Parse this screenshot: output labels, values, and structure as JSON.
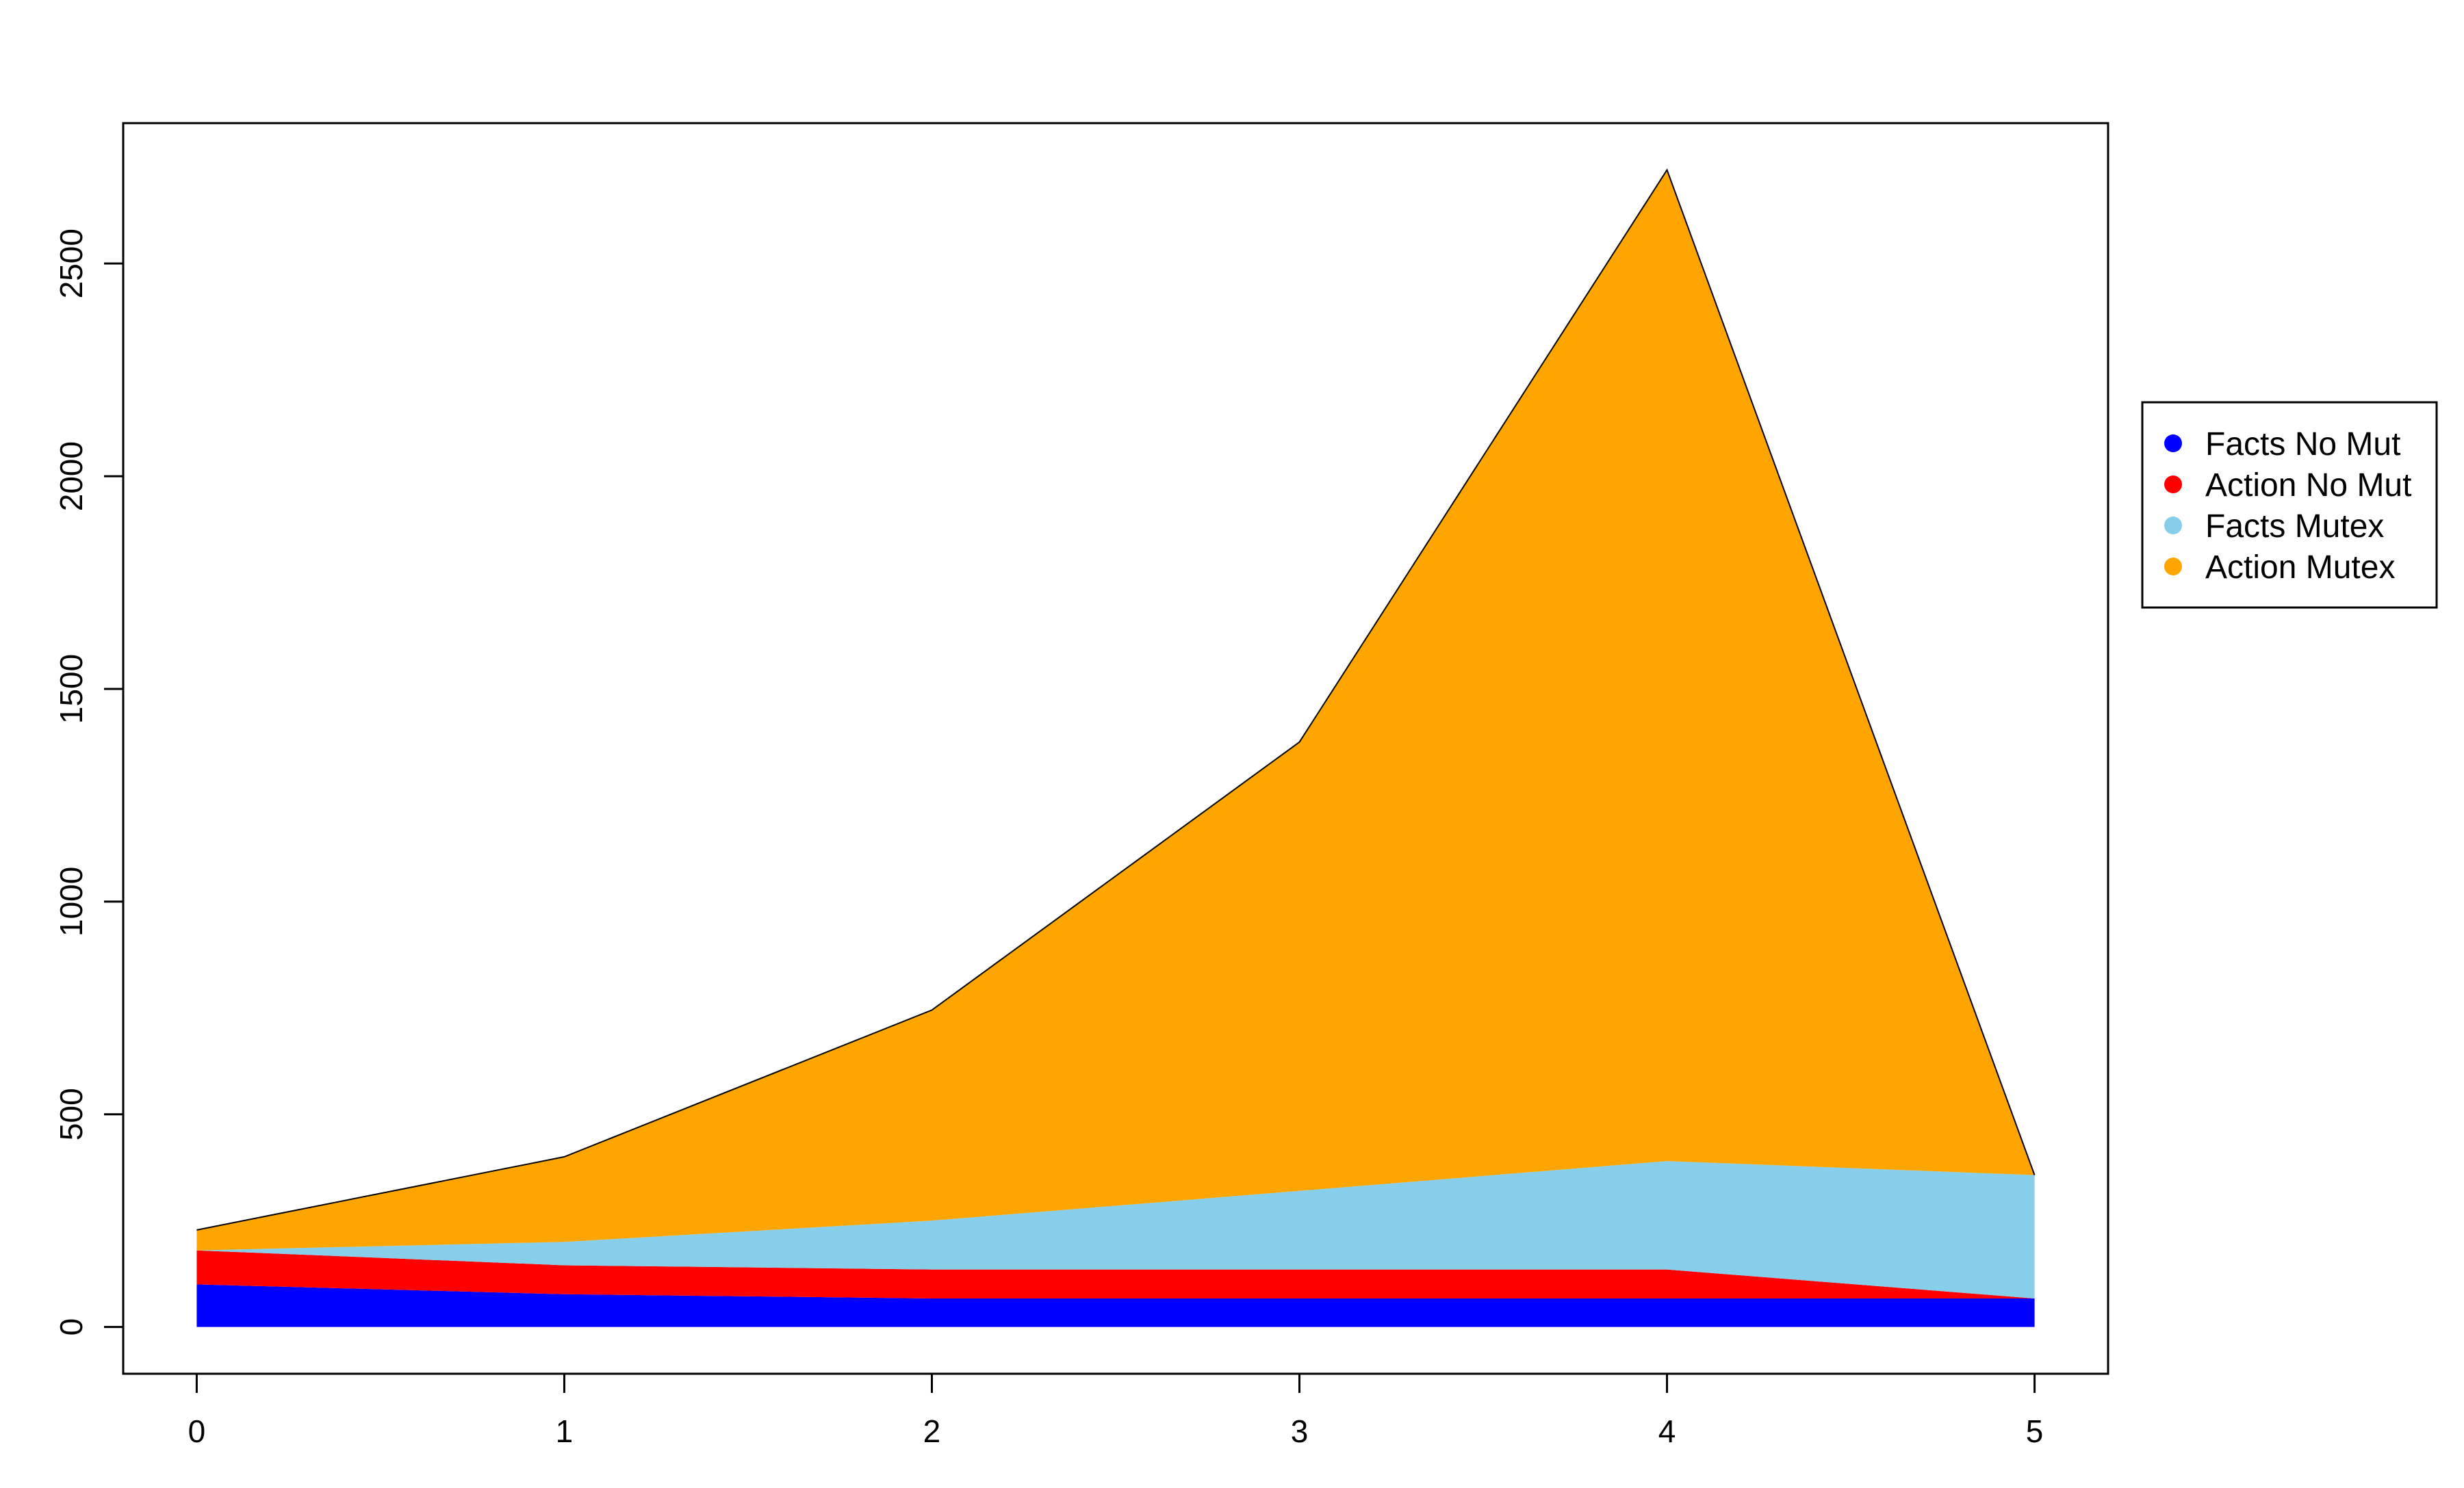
{
  "chart_data": {
    "type": "area",
    "stacked": true,
    "title": "",
    "xlabel": "",
    "ylabel": "",
    "x": [
      0,
      1,
      2,
      3,
      4,
      5
    ],
    "xlim": [
      -0.2,
      5.2
    ],
    "ylim": [
      -110,
      2830
    ],
    "x_ticks": [
      0,
      1,
      2,
      3,
      4,
      5
    ],
    "y_ticks": [
      0,
      500,
      1000,
      1500,
      2000,
      2500
    ],
    "x_tick_labels": [
      "0",
      "1",
      "2",
      "3",
      "4",
      "5"
    ],
    "y_tick_labels": [
      "0",
      "500",
      "1000",
      "1500",
      "2000",
      "2500"
    ],
    "grid": false,
    "legend_position": "right",
    "series": [
      {
        "name": "Facts No Mut",
        "color": "#0000FF",
        "values": [
          100,
          77,
          67,
          67,
          67,
          67
        ]
      },
      {
        "name": "Action No Mut",
        "color": "#FF0000",
        "values": [
          80,
          68,
          68,
          68,
          68,
          0
        ]
      },
      {
        "name": "Facts Mutex",
        "color": "#87CEEB",
        "values": [
          0,
          55,
          115,
          185,
          255,
          290
        ]
      },
      {
        "name": "Action Mutex",
        "color": "#FFA500",
        "values": [
          48,
          200,
          495,
          1055,
          2330,
          0
        ]
      }
    ]
  }
}
